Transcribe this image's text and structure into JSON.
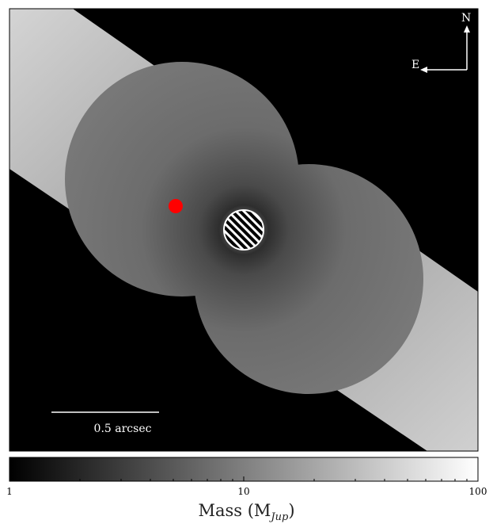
{
  "image": {
    "compass": {
      "north": "N",
      "east": "E"
    },
    "scale_bar": {
      "label": "0.5 arcsec"
    },
    "markers": {
      "companion_color": "#ff0000"
    }
  },
  "colorbar": {
    "label_main": "Mass (M",
    "label_sub": "Jup",
    "label_close": ")",
    "scale": "log",
    "range": [
      1,
      100
    ],
    "ticks": [
      "1",
      "10",
      "100"
    ],
    "cmap": [
      "#000000",
      "#ffffff"
    ]
  }
}
